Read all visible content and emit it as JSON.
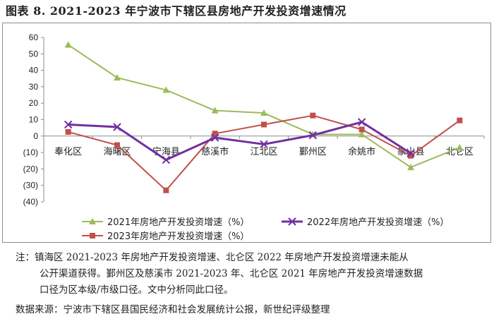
{
  "title": "图表 8.   2021-2023 年宁波市下辖区县房地产开发投资增速情况",
  "notes": {
    "line1": "注：镇海区 2021-2023 年房地产开发投资增速、北仑区 2022 年房地产开发投资增速未能从",
    "line2": "公开渠道获得。鄞州区及慈溪市 2021-2023 年、北仑区 2021 年房地产开发投资增速数据",
    "line3": "口径为区本级/市级口径。文中分析同此口径。",
    "source": "数据来源：宁波市下辖区县国民经济和社会发展统计公报，新世纪评级整理"
  },
  "chart_data": {
    "type": "line",
    "categories": [
      "奉化区",
      "海曙区",
      "宁海县",
      "慈溪市",
      "江北区",
      "鄞州区",
      "余姚市",
      "象山县",
      "北仑区"
    ],
    "ylim": [
      -40,
      60
    ],
    "yticks": [
      60,
      50,
      40,
      30,
      20,
      10,
      0,
      -10,
      -20,
      -30,
      -40
    ],
    "ytick_labels": [
      "60",
      "50",
      "40",
      "30",
      "20",
      "10",
      "0",
      "(10)",
      "(20)",
      "(30)",
      "(40)"
    ],
    "grid": false,
    "legend_position": "bottom",
    "series": [
      {
        "name": "2021年房地产开发投资增速（%）",
        "color": "#9bbb59",
        "marker": "triangle",
        "values": [
          55.5,
          35.5,
          28.0,
          15.5,
          14.0,
          1.0,
          1.0,
          -19.0,
          -7.0
        ]
      },
      {
        "name": "2022年房地产开发投资增速（%）",
        "color": "#7030a0",
        "marker": "x",
        "values": [
          7.0,
          5.5,
          -14.5,
          -1.0,
          -5.0,
          0.5,
          8.5,
          -10.5,
          null
        ]
      },
      {
        "name": "2023年房地产开发投资增速（%）",
        "color": "#c0504d",
        "marker": "square",
        "values": [
          2.5,
          -5.5,
          -33.0,
          1.5,
          7.0,
          12.5,
          4.0,
          -12.0,
          9.5
        ]
      }
    ]
  }
}
